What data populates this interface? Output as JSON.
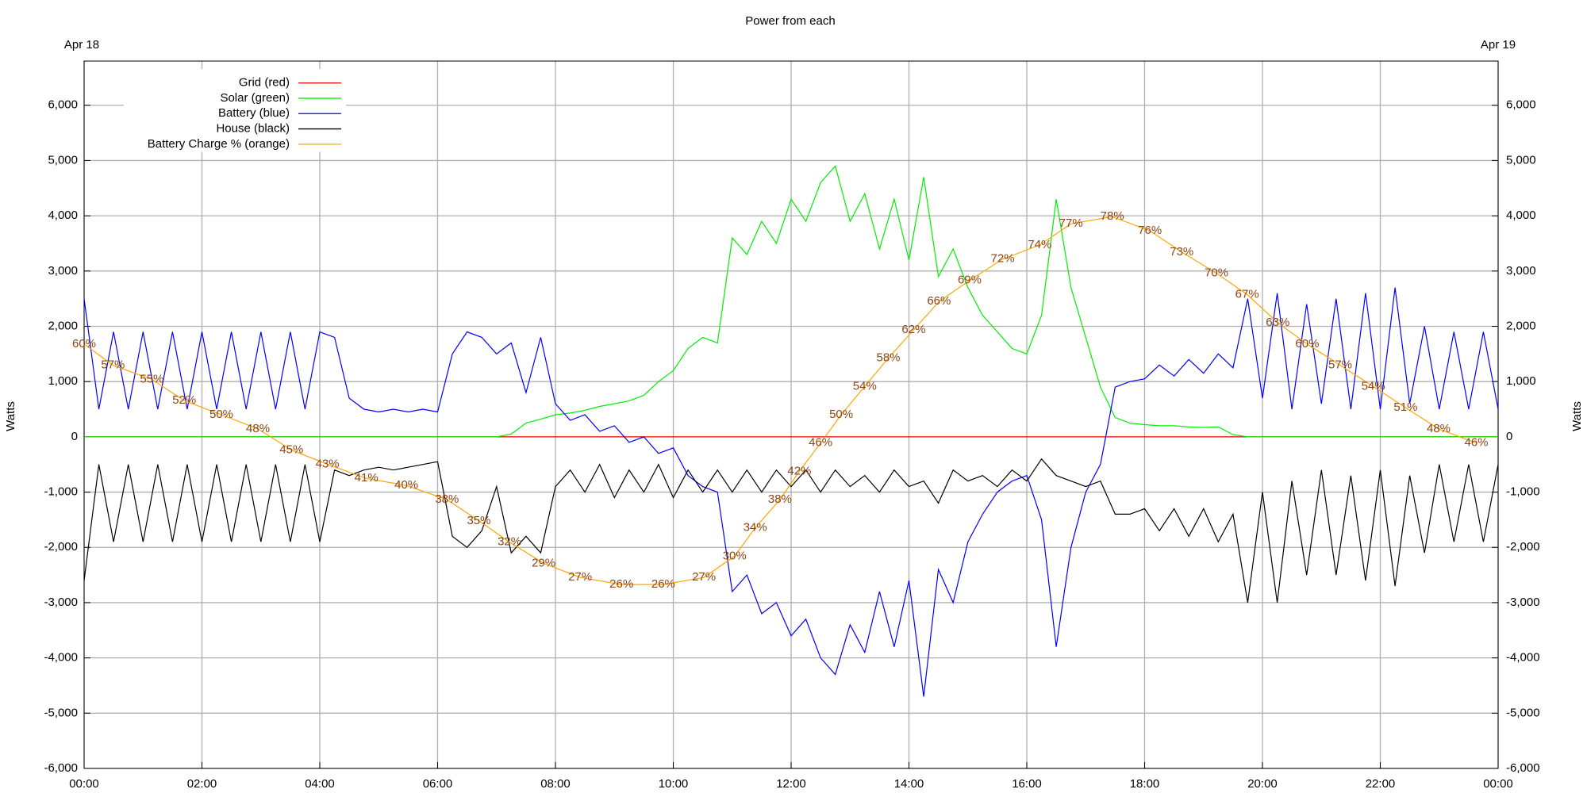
{
  "chart_data": {
    "type": "line",
    "title": "Power from each",
    "annotations": [
      "Apr 18",
      "Apr 19"
    ],
    "ylabel": "Watts",
    "y2label": "Watts",
    "legend": "upper left",
    "grid": true,
    "xlim": [
      0,
      24
    ],
    "xticks": [
      {
        "value": 0,
        "label": "00:00"
      },
      {
        "value": 2,
        "label": "02:00"
      },
      {
        "value": 4,
        "label": "04:00"
      },
      {
        "value": 6,
        "label": "06:00"
      },
      {
        "value": 8,
        "label": "08:00"
      },
      {
        "value": 10,
        "label": "10:00"
      },
      {
        "value": 12,
        "label": "12:00"
      },
      {
        "value": 14,
        "label": "14:00"
      },
      {
        "value": 16,
        "label": "16:00"
      },
      {
        "value": 18,
        "label": "18:00"
      },
      {
        "value": 20,
        "label": "20:00"
      },
      {
        "value": 22,
        "label": "22:00"
      },
      {
        "value": 24,
        "label": "00:00"
      }
    ],
    "ylim": [
      -6000,
      6800
    ],
    "yticks": [
      {
        "value": -6000,
        "label": "-6,000"
      },
      {
        "value": -5000,
        "label": "-5,000"
      },
      {
        "value": -4000,
        "label": "-4,000"
      },
      {
        "value": -3000,
        "label": "-3,000"
      },
      {
        "value": -2000,
        "label": "-2,000"
      },
      {
        "value": -1000,
        "label": "-1,000"
      },
      0,
      {
        "value": 1000,
        "label": "1,000"
      },
      {
        "value": 2000,
        "label": "2,000"
      },
      {
        "value": 3000,
        "label": "3,000"
      },
      {
        "value": 4000,
        "label": "4,000"
      },
      {
        "value": 5000,
        "label": "5,000"
      },
      {
        "value": 6000,
        "label": "6,000"
      }
    ],
    "y2lim": [
      0,
      100
    ],
    "x": [
      0,
      0.25,
      0.5,
      0.75,
      1,
      1.25,
      1.5,
      1.75,
      2,
      2.25,
      2.5,
      2.75,
      3,
      3.25,
      3.5,
      3.75,
      4,
      4.25,
      4.5,
      4.75,
      5,
      5.25,
      5.5,
      5.75,
      6,
      6.25,
      6.5,
      6.75,
      7,
      7.25,
      7.5,
      7.75,
      8,
      8.25,
      8.5,
      8.75,
      9,
      9.25,
      9.5,
      9.75,
      10,
      10.25,
      10.5,
      10.75,
      11,
      11.25,
      11.5,
      11.75,
      12,
      12.25,
      12.5,
      12.75,
      13,
      13.25,
      13.5,
      13.75,
      14,
      14.25,
      14.5,
      14.75,
      15,
      15.25,
      15.5,
      15.75,
      16,
      16.25,
      16.5,
      16.75,
      17,
      17.25,
      17.5,
      17.75,
      18,
      18.25,
      18.5,
      18.75,
      19,
      19.25,
      19.5,
      19.75,
      20,
      20.25,
      20.5,
      20.75,
      21,
      21.25,
      21.5,
      21.75,
      22,
      22.25,
      22.5,
      22.75,
      23,
      23.25,
      23.5,
      23.75,
      24
    ],
    "series": [
      {
        "name": "Grid (red)",
        "color": "#ff0000",
        "values": [
          0,
          0,
          0,
          0,
          0,
          0,
          0,
          0,
          0,
          0,
          0,
          0,
          0,
          0,
          0,
          0,
          0,
          0,
          0,
          0,
          0,
          0,
          0,
          0,
          0,
          0,
          0,
          0,
          0,
          0,
          0,
          0,
          0,
          0,
          0,
          0,
          0,
          0,
          0,
          0,
          0,
          0,
          0,
          0,
          0,
          0,
          0,
          0,
          0,
          0,
          0,
          0,
          0,
          0,
          0,
          0,
          0,
          0,
          0,
          0,
          0,
          0,
          0,
          0,
          0,
          0,
          0,
          0,
          0,
          0,
          0,
          0,
          0,
          0,
          0,
          0,
          0,
          0,
          0,
          0,
          0,
          0,
          0,
          0,
          0,
          0,
          0,
          0,
          0,
          0,
          0,
          0,
          0,
          0,
          0,
          0,
          0
        ]
      },
      {
        "name": "Solar (green)",
        "color": "#00ee00",
        "values": [
          0,
          0,
          0,
          0,
          0,
          0,
          0,
          0,
          0,
          0,
          0,
          0,
          0,
          0,
          0,
          0,
          0,
          0,
          0,
          0,
          0,
          0,
          0,
          0,
          0,
          0,
          0,
          0,
          0,
          50,
          250,
          320,
          400,
          430,
          480,
          550,
          600,
          650,
          750,
          1000,
          1200,
          1600,
          1800,
          1700,
          3600,
          3300,
          3900,
          3500,
          4300,
          3900,
          4600,
          4900,
          3900,
          4400,
          3400,
          4300,
          3200,
          4700,
          2900,
          3400,
          2700,
          2200,
          1900,
          1600,
          1500,
          2200,
          4300,
          2700,
          1800,
          900,
          350,
          250,
          220,
          200,
          200,
          180,
          170,
          180,
          40,
          0,
          0,
          0,
          0,
          0,
          0,
          0,
          0,
          0,
          0,
          0,
          0,
          0,
          0,
          0,
          0,
          0,
          0
        ]
      },
      {
        "name": "Battery (blue)",
        "color": "#0000ff",
        "values": [
          2500,
          500,
          1900,
          500,
          1900,
          500,
          1900,
          500,
          1900,
          500,
          1900,
          500,
          1900,
          500,
          1900,
          500,
          1900,
          1800,
          700,
          500,
          450,
          500,
          450,
          500,
          450,
          1500,
          1900,
          1800,
          1500,
          1700,
          800,
          1800,
          600,
          300,
          400,
          100,
          200,
          -100,
          0,
          -300,
          -200,
          -700,
          -900,
          -1000,
          -2800,
          -2500,
          -3200,
          -3000,
          -3600,
          -3300,
          -4000,
          -4300,
          -3400,
          -3900,
          -2800,
          -3800,
          -2600,
          -4700,
          -2400,
          -3000,
          -1900,
          -1400,
          -1000,
          -800,
          -700,
          -1500,
          -3800,
          -2000,
          -1000,
          -500,
          900,
          1000,
          1050,
          1300,
          1100,
          1400,
          1150,
          1500,
          1250,
          2500,
          700,
          2600,
          500,
          2400,
          600,
          2500,
          500,
          2600,
          500,
          2700,
          600,
          2000,
          500,
          1900,
          500,
          1900,
          500
        ]
      },
      {
        "name": "House (black)",
        "color": "#000000",
        "values": [
          -2600,
          -500,
          -1900,
          -500,
          -1900,
          -500,
          -1900,
          -500,
          -1900,
          -500,
          -1900,
          -500,
          -1900,
          -500,
          -1900,
          -500,
          -1900,
          -600,
          -700,
          -600,
          -550,
          -600,
          -550,
          -500,
          -450,
          -1800,
          -2000,
          -1700,
          -900,
          -2100,
          -1800,
          -2100,
          -900,
          -600,
          -1000,
          -500,
          -1100,
          -600,
          -1000,
          -500,
          -1100,
          -600,
          -1000,
          -600,
          -1000,
          -600,
          -1000,
          -600,
          -900,
          -600,
          -1000,
          -600,
          -900,
          -700,
          -1000,
          -600,
          -900,
          -800,
          -1200,
          -600,
          -800,
          -700,
          -900,
          -600,
          -800,
          -400,
          -700,
          -800,
          -900,
          -800,
          -1400,
          -1400,
          -1300,
          -1700,
          -1300,
          -1800,
          -1300,
          -1900,
          -1400,
          -3000,
          -1000,
          -3000,
          -800,
          -2500,
          -600,
          -2500,
          -700,
          -2600,
          -600,
          -2700,
          -700,
          -2100,
          -500,
          -1900,
          -500,
          -1900,
          -500
        ]
      },
      {
        "name": "Battery Charge % (orange)",
        "color": "#ffa500",
        "axis": "y2",
        "label_color": "#8b4513",
        "x": [
          0,
          0.49,
          1.15,
          1.7,
          2.33,
          2.95,
          3.52,
          4.13,
          4.79,
          5.47,
          6.16,
          6.7,
          7.22,
          7.8,
          8.42,
          9.12,
          9.83,
          10.52,
          11.04,
          11.39,
          11.81,
          12.14,
          12.5,
          12.85,
          13.25,
          13.65,
          14.08,
          14.51,
          15.03,
          15.59,
          16.22,
          16.75,
          17.45,
          18.09,
          18.63,
          19.22,
          19.74,
          20.26,
          20.76,
          21.32,
          21.88,
          22.43,
          22.99,
          23.63
        ],
        "values": [
          60,
          57,
          55,
          52,
          50,
          48,
          45,
          43,
          41,
          40,
          38,
          35,
          32,
          29,
          27,
          26,
          26,
          27,
          30,
          34,
          38,
          42,
          46,
          50,
          54,
          58,
          62,
          66,
          69,
          72,
          74,
          77,
          78,
          76,
          73,
          70,
          67,
          63,
          60,
          57,
          54,
          51,
          48,
          46
        ],
        "value_labels": [
          "60%",
          "57%",
          "55%",
          "52%",
          "50%",
          "48%",
          "45%",
          "43%",
          "41%",
          "40%",
          "38%",
          "35%",
          "32%",
          "29%",
          "27%",
          "26%",
          "26%",
          "27%",
          "30%",
          "34%",
          "38%",
          "42%",
          "46%",
          "50%",
          "54%",
          "58%",
          "62%",
          "66%",
          "69%",
          "72%",
          "74%",
          "77%",
          "78%",
          "76%",
          "73%",
          "70%",
          "67%",
          "63%",
          "60%",
          "57%",
          "54%",
          "51%",
          "48%",
          "46%"
        ]
      }
    ]
  }
}
